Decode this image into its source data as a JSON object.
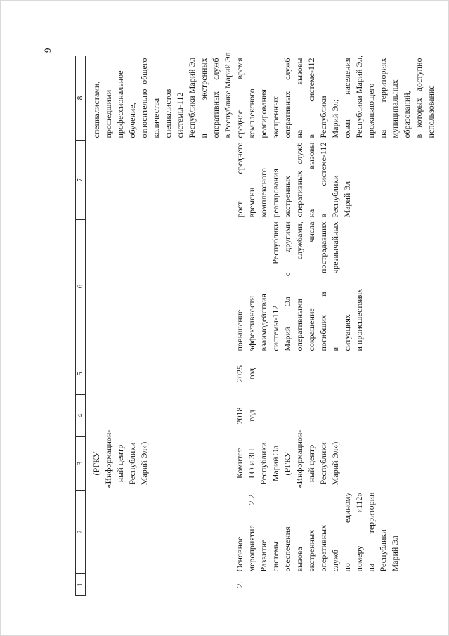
{
  "page_number": "9",
  "table": {
    "column_numbers": [
      "1",
      "2",
      "3",
      "4",
      "5",
      "6",
      "7",
      "8"
    ],
    "rows": [
      {
        "cells": [
          {
            "paragraphs": []
          },
          {
            "paragraphs": []
          },
          {
            "paragraphs": [
              [
                "(РГКУ",
                "«Информацион-",
                "ный центр",
                "Республики",
                "Марий Эл»)"
              ]
            ]
          },
          {
            "paragraphs": []
          },
          {
            "paragraphs": []
          },
          {
            "paragraphs": []
          },
          {
            "paragraphs": []
          },
          {
            "paragraphs": [
              [
                "специалистами,",
                "прошедшими",
                "профессиональное",
                "обучение,",
                "относительно общего",
                "количества",
                "специалистов",
                "системы-112",
                "Республики Марий Эл",
                "и экстренных",
                "оперативных служб",
                "в Республике Марий Эл"
              ]
            ]
          }
        ]
      },
      {
        "cells": [
          {
            "paragraphs": [
              [
                "2."
              ]
            ]
          },
          {
            "paragraphs": [
              [
                "Основное",
                "мероприятие 2.2.",
                "Развитие",
                "системы",
                "обеспечения",
                "вызова",
                "экстренных",
                "оперативных",
                "служб",
                "по единому",
                "номеру «112»",
                "на территории",
                "Республики",
                "Марий Эл"
              ]
            ]
          },
          {
            "paragraphs": [
              [
                "Комитет",
                "ГО и ЗН",
                "Республики",
                "Марий Эл",
                "(РГКУ",
                "«Информацион-",
                "ный центр",
                "Республики",
                "Марий Эл»)"
              ]
            ]
          },
          {
            "paragraphs": [
              [
                "2018",
                "год"
              ]
            ]
          },
          {
            "paragraphs": [
              [
                "2025",
                "год"
              ]
            ]
          },
          {
            "paragraphs": [
              [
                "повышение",
                "эффективности",
                "взаимодействия",
                "системы-112 Республики",
                "Марий Эл с другими",
                "оперативными службами,",
                "сокращение числа",
                "погибших и пострадавших",
                "в чрезвычайных",
                "ситуациях",
                "и происшествиях"
              ]
            ]
          },
          {
            "paragraphs": [
              [
                "рост среднего",
                "времени",
                "комплексного",
                "реагирования",
                "экстренных",
                "оперативных служб",
                "на вызовы",
                "в системе-112",
                "Республики",
                "Марий Эл"
              ]
            ]
          },
          {
            "paragraphs": [
              [
                "среднее время",
                "комплексного",
                "реагирования",
                "экстренных",
                "оперативных служб",
                "на вызовы",
                "в системе-112",
                "Республики",
                "Марий Эл;"
              ],
              [
                "охват населения",
                "Республики Марий Эл,",
                "проживающего",
                "на территориях",
                "муниципальных",
                "образований,",
                "в которых доступно",
                "использование"
              ]
            ]
          }
        ]
      }
    ]
  }
}
